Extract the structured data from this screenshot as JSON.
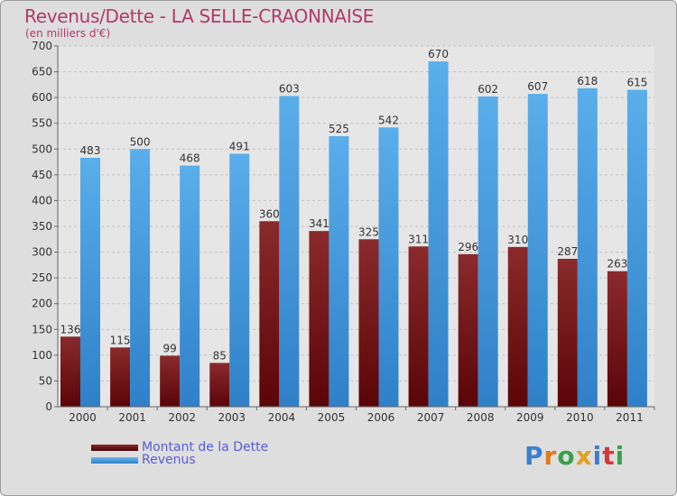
{
  "header": {
    "title": "Revenus/Dette - LA SELLE-CRAONNAISE",
    "subtitle": "(en milliers d'€)"
  },
  "legend": [
    {
      "label": "Montant de la Dette",
      "color": "#6b0f12"
    },
    {
      "label": "Revenus",
      "color": "#4a9ee0"
    }
  ],
  "logo": {
    "letters": [
      "P",
      "r",
      "o",
      "x",
      "i",
      "t",
      "i"
    ],
    "colors": [
      "#3a7fd0",
      "#e07a1a",
      "#3aa04a",
      "#e0a020",
      "#3a7fd0",
      "#d03a3a",
      "#3aa04a"
    ]
  },
  "chart_data": {
    "type": "bar",
    "categories": [
      "2000",
      "2001",
      "2002",
      "2003",
      "2004",
      "2005",
      "2006",
      "2007",
      "2008",
      "2009",
      "2010",
      "2011"
    ],
    "series": [
      {
        "name": "Montant de la Dette",
        "values": [
          136,
          115,
          99,
          85,
          360,
          341,
          325,
          311,
          296,
          310,
          287,
          263
        ],
        "color": "#7a1a1c"
      },
      {
        "name": "Revenus",
        "values": [
          483,
          500,
          468,
          491,
          603,
          525,
          542,
          670,
          602,
          607,
          618,
          615
        ],
        "color": "#4aa0e2"
      }
    ],
    "yticks": [
      0,
      50,
      100,
      150,
      200,
      250,
      300,
      350,
      400,
      450,
      500,
      550,
      600,
      650,
      700
    ],
    "ylim": [
      0,
      700
    ],
    "grid": true,
    "legend_position": "bottom-left"
  }
}
